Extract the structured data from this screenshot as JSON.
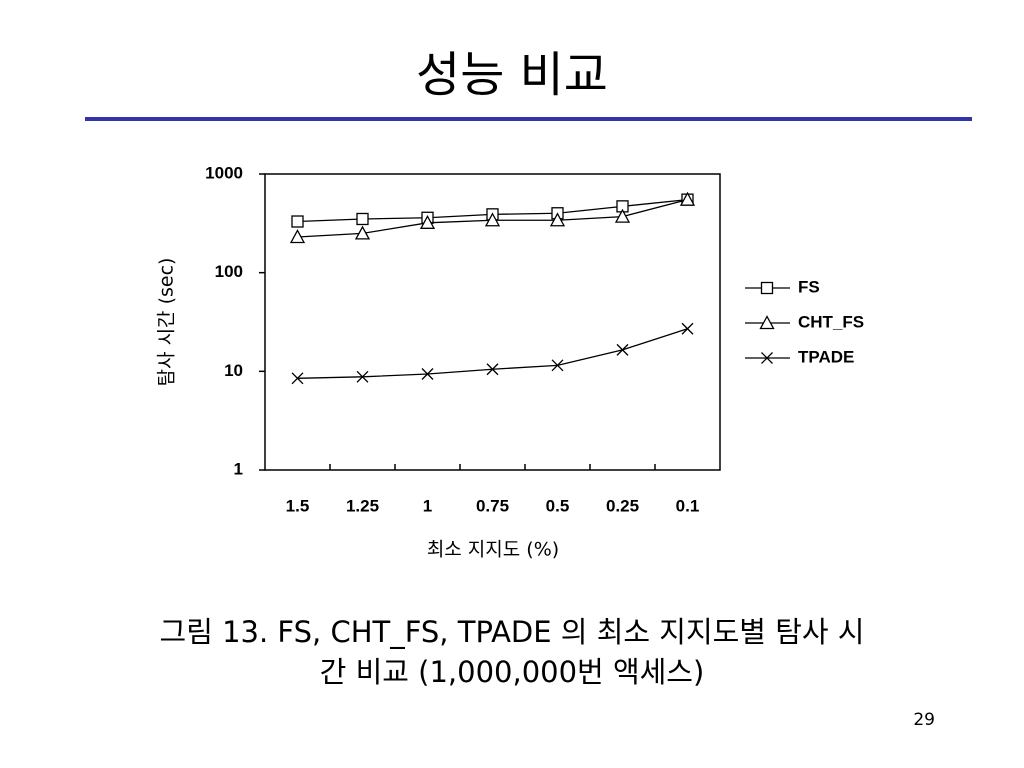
{
  "title": "성능 비교",
  "caption": [
    "그림 13. FS, CHT_FS, TPADE 의 최소 지지도별 탐사 시",
    "간 비교  (1,000,000번 액세스)"
  ],
  "page_number": "29",
  "chart_data": {
    "type": "line",
    "xlabel": "최소 지지도 (%)",
    "ylabel": "탐사 시간 (sec)",
    "categories": [
      "1.5",
      "1.25",
      "1",
      "0.75",
      "0.5",
      "0.25",
      "0.1"
    ],
    "series": [
      {
        "name": "FS",
        "color": "#000000",
        "marker": "square",
        "values": [
          330,
          350,
          360,
          390,
          400,
          470,
          550
        ]
      },
      {
        "name": "CHT_FS",
        "color": "#000000",
        "marker": "triangle",
        "values": [
          230,
          250,
          320,
          340,
          340,
          370,
          550
        ]
      },
      {
        "name": "TPADE",
        "color": "#000000",
        "marker": "x",
        "values": [
          8.5,
          8.8,
          9.4,
          10.5,
          11.5,
          16.5,
          27
        ]
      }
    ],
    "yscale": "log",
    "ylim": [
      1,
      1000
    ],
    "yticks": [
      1,
      10,
      100,
      1000
    ],
    "grid": false,
    "legend": "right"
  }
}
